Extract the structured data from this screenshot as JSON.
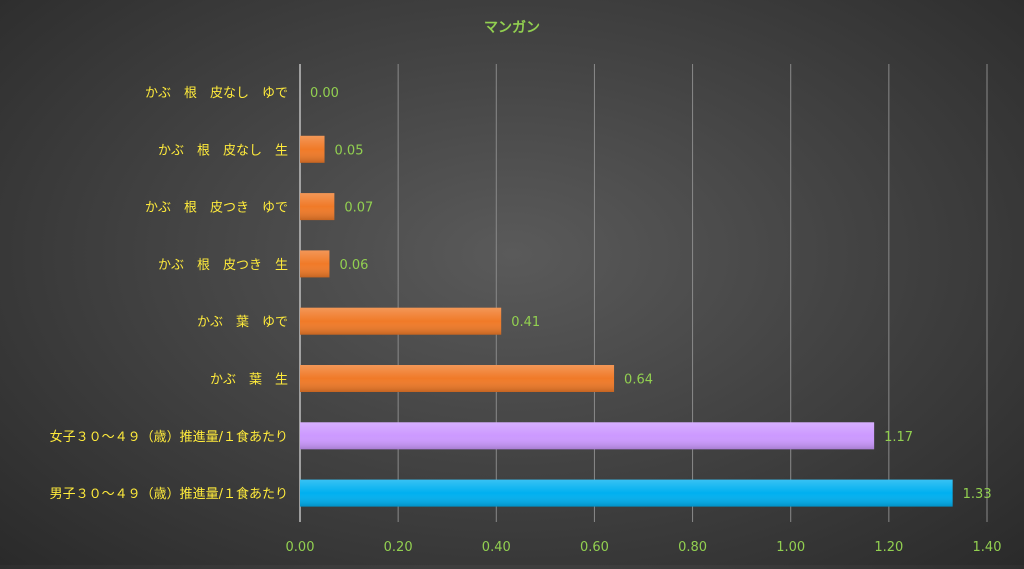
{
  "chart_data": {
    "type": "bar",
    "orientation": "horizontal",
    "title": "マンガン",
    "categories": [
      "かぶ　根　皮なし　ゆで",
      "かぶ　根　皮なし　生",
      "かぶ　根　皮つき　ゆで",
      "かぶ　根　皮つき　生",
      "かぶ　葉　ゆで",
      "かぶ　葉　生",
      "女子３０～４９（歳）推進量/１食あたり",
      "男子３０～４９（歳）推進量/１食あたり"
    ],
    "values": [
      0.0,
      0.05,
      0.07,
      0.06,
      0.41,
      0.64,
      1.17,
      1.33
    ],
    "value_labels": [
      "0.00",
      "0.05",
      "0.07",
      "0.06",
      "0.41",
      "0.64",
      "1.17",
      "1.33"
    ],
    "bar_colors": [
      "#f07a28",
      "#f07a28",
      "#f07a28",
      "#f07a28",
      "#f07a28",
      "#f07a28",
      "#cc99ff",
      "#00b0f0"
    ],
    "xlim": [
      0,
      1.4
    ],
    "xticks": [
      "0.00",
      "0.20",
      "0.40",
      "0.60",
      "0.80",
      "1.00",
      "1.20",
      "1.40"
    ],
    "xlabel": "",
    "ylabel": "",
    "grid": "vertical",
    "legend": "none",
    "colors": {
      "title": "#92d050",
      "category_labels": "#ffeb3b",
      "value_labels": "#92d050",
      "tick_labels": "#92d050",
      "gridlines": "#8a8a8a"
    }
  }
}
